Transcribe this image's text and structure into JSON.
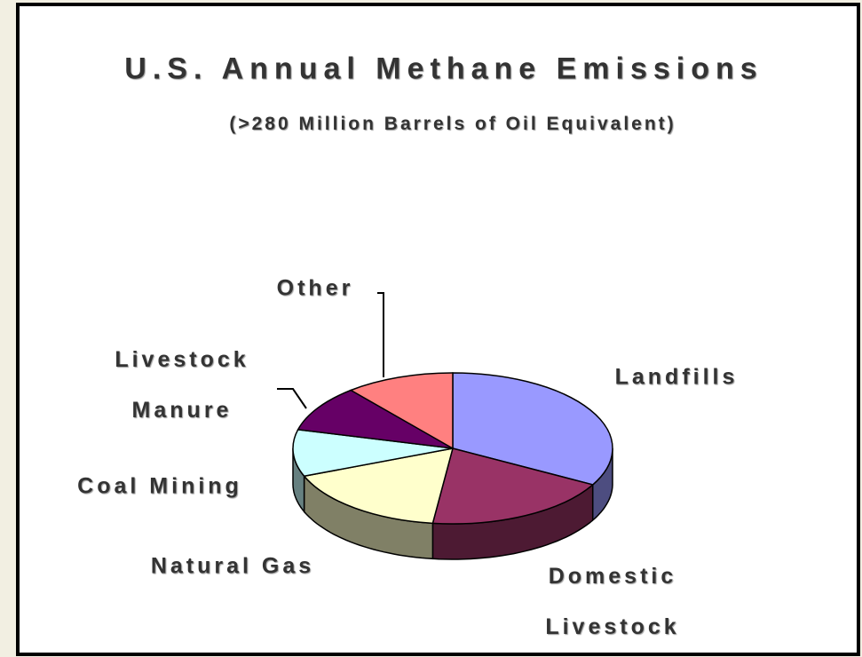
{
  "chart_data": {
    "type": "pie",
    "title": "U.S. Annual Methane Emissions",
    "subtitle": "(>280 Million Barrels of Oil Equivalent)",
    "categories": [
      "Landfills",
      "Domestic Livestock",
      "Natural Gas",
      "Coal Mining",
      "Livestock Manure",
      "Other"
    ],
    "values": [
      33,
      19,
      17,
      10,
      10,
      11
    ],
    "colors": [
      "#9999ff",
      "#993366",
      "#ffffcc",
      "#ccffff",
      "#660066",
      "#ff8080"
    ]
  }
}
